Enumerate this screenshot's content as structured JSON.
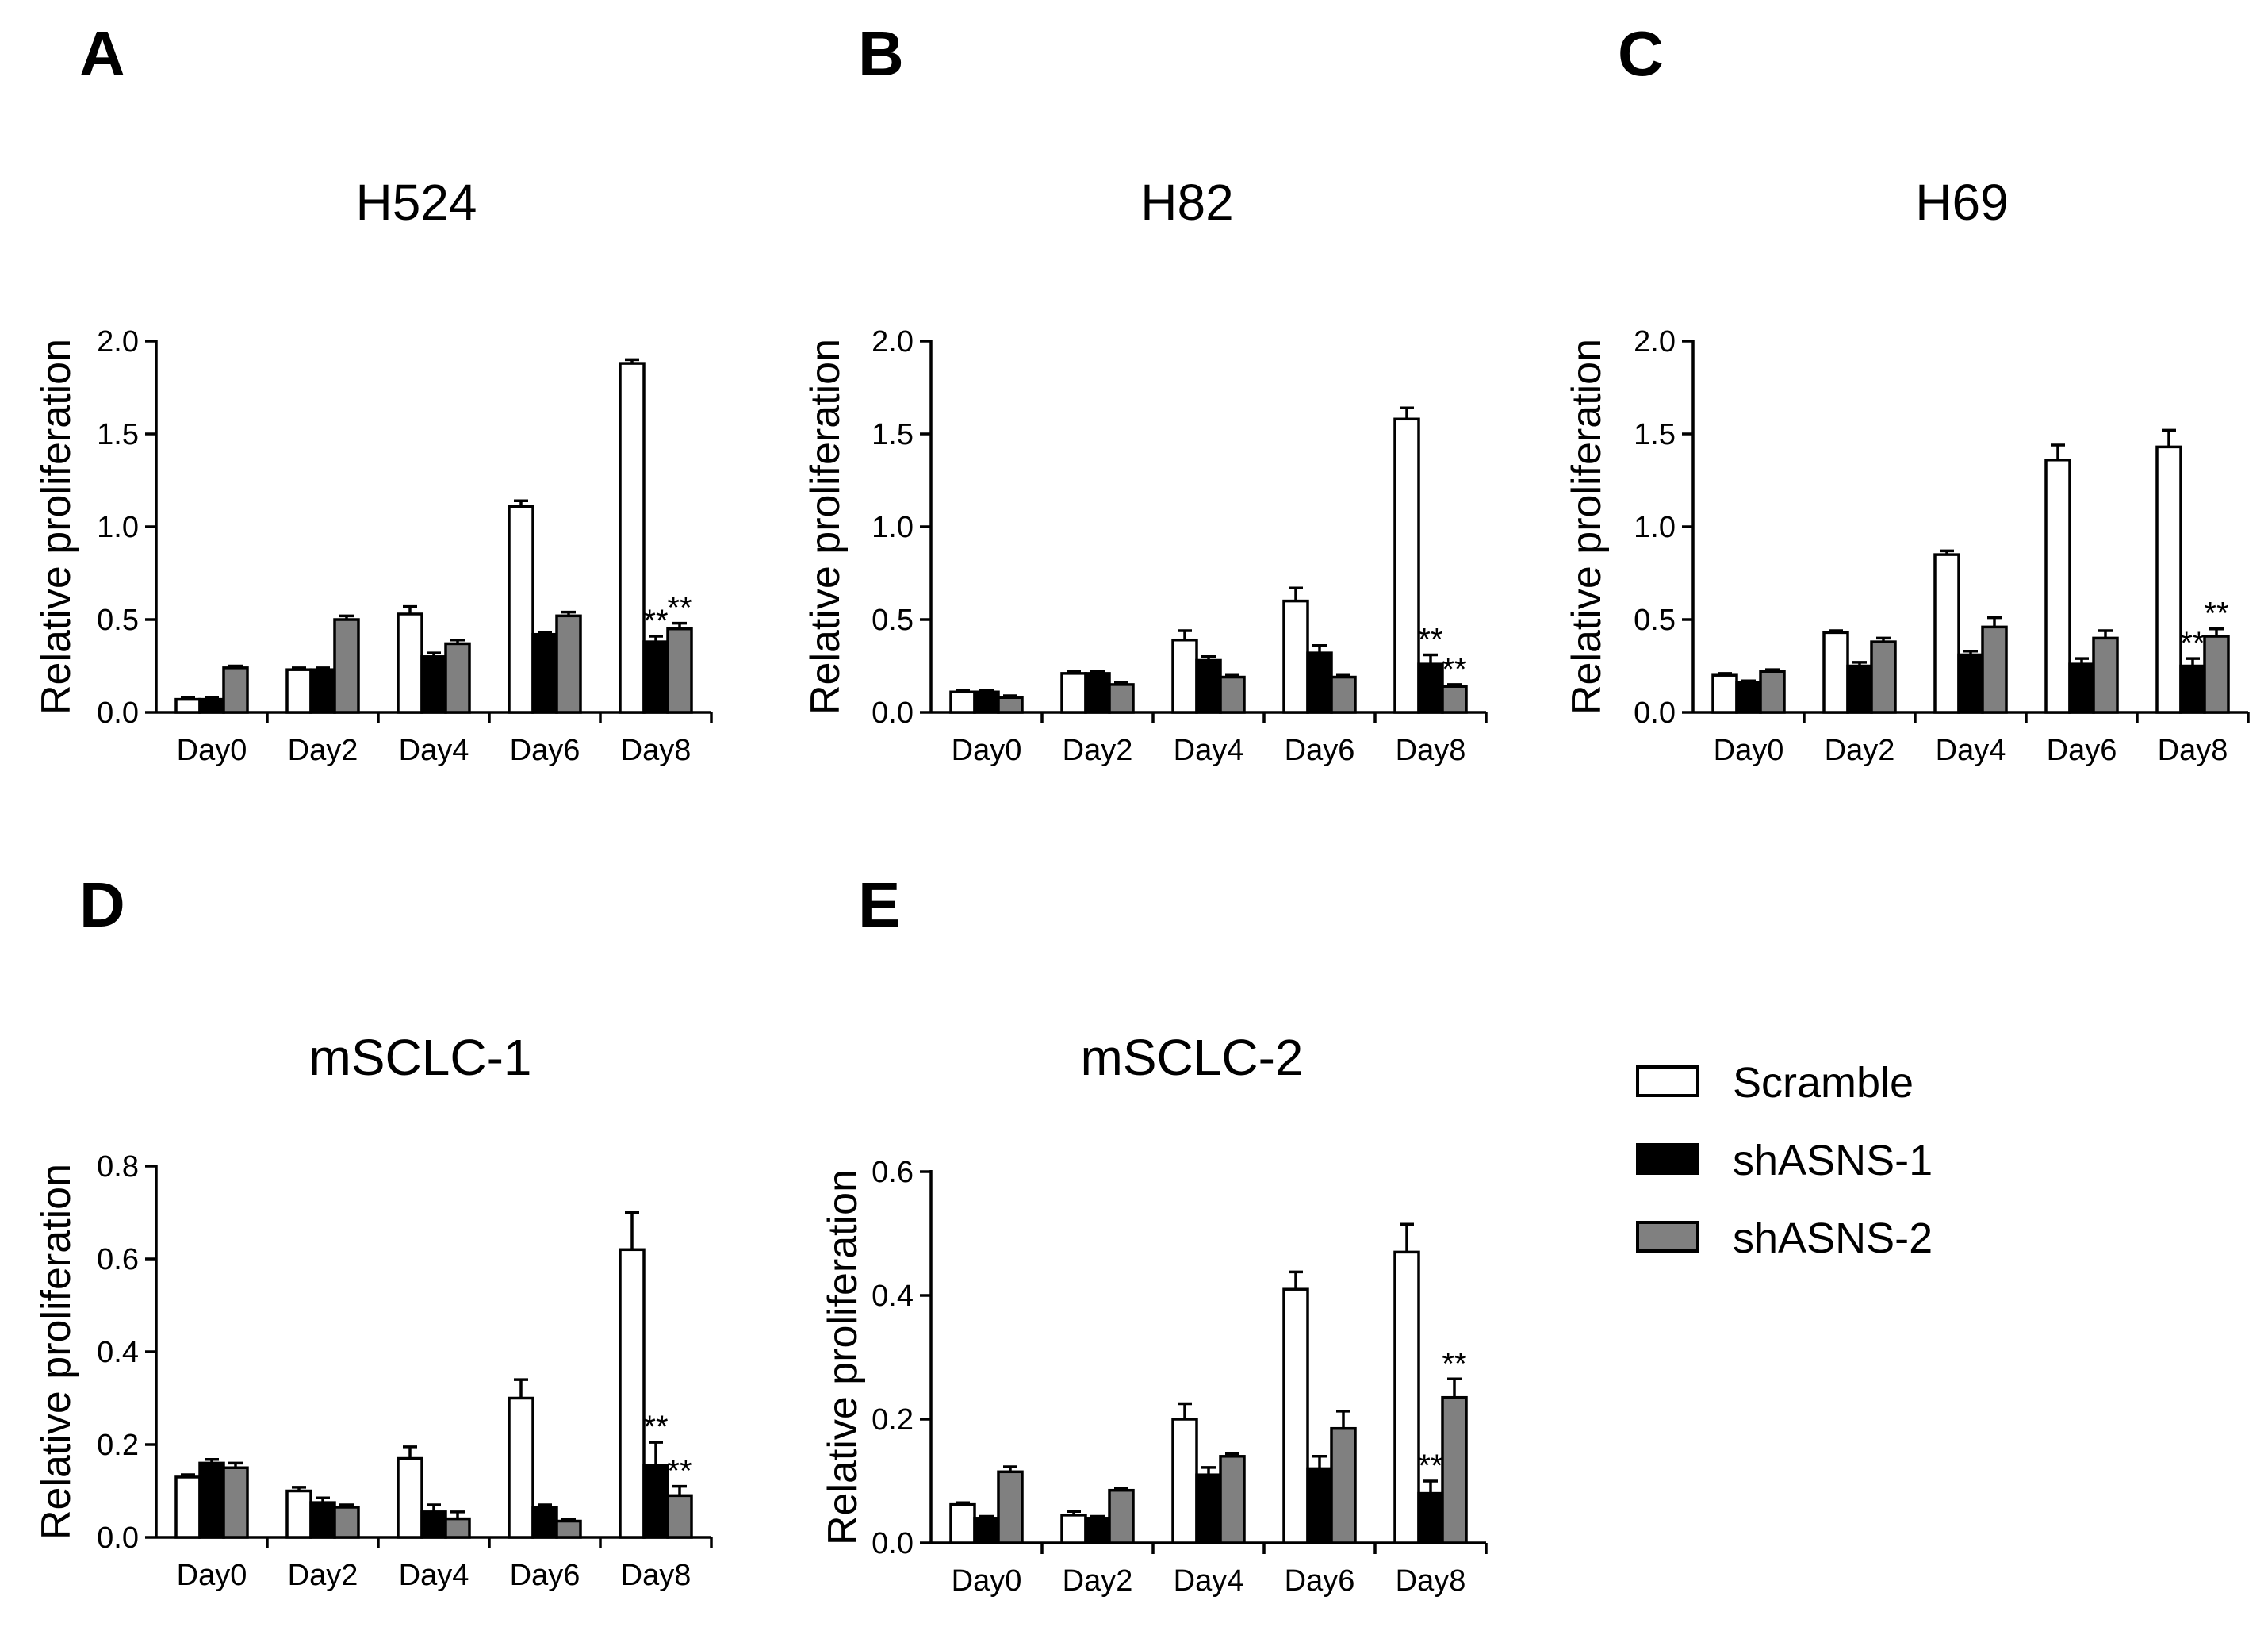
{
  "legend": [
    {
      "name": "Scramble",
      "color": "#ffffff"
    },
    {
      "name": "shASNS-1",
      "color": "#000000"
    },
    {
      "name": "shASNS-2",
      "color": "#808080"
    }
  ],
  "chart_data": [
    {
      "type": "bar",
      "panel": "A",
      "title": "H524",
      "xlabel": "",
      "ylabel": "Relative proliferation",
      "ylim": [
        0,
        2.0
      ],
      "yticks": [
        "0.0",
        "0.5",
        "1.0",
        "1.5",
        "2.0"
      ],
      "categories": [
        "Day0",
        "Day2",
        "Day4",
        "Day6",
        "Day8"
      ],
      "series": [
        {
          "name": "Scramble",
          "values": [
            0.07,
            0.23,
            0.53,
            1.11,
            1.88
          ],
          "errors": [
            0.01,
            0.01,
            0.04,
            0.03,
            0.02
          ]
        },
        {
          "name": "shASNS-1",
          "values": [
            0.07,
            0.23,
            0.3,
            0.42,
            0.38
          ],
          "errors": [
            0.01,
            0.01,
            0.02,
            0.01,
            0.03
          ]
        },
        {
          "name": "shASNS-2",
          "values": [
            0.24,
            0.5,
            0.37,
            0.52,
            0.45
          ],
          "errors": [
            0.01,
            0.02,
            0.02,
            0.02,
            0.03
          ]
        }
      ],
      "annotations": [
        {
          "category": "Day8",
          "series": "shASNS-1",
          "text": "**"
        },
        {
          "category": "Day8",
          "series": "shASNS-2",
          "text": "**"
        }
      ]
    },
    {
      "type": "bar",
      "panel": "B",
      "title": "H82",
      "xlabel": "",
      "ylabel": "Relative proliferation",
      "ylim": [
        0,
        2.0
      ],
      "yticks": [
        "0.0",
        "0.5",
        "1.0",
        "1.5",
        "2.0"
      ],
      "categories": [
        "Day0",
        "Day2",
        "Day4",
        "Day6",
        "Day8"
      ],
      "series": [
        {
          "name": "Scramble",
          "values": [
            0.11,
            0.21,
            0.39,
            0.6,
            1.58
          ],
          "errors": [
            0.01,
            0.01,
            0.05,
            0.07,
            0.06
          ]
        },
        {
          "name": "shASNS-1",
          "values": [
            0.11,
            0.21,
            0.28,
            0.32,
            0.26
          ],
          "errors": [
            0.01,
            0.01,
            0.02,
            0.04,
            0.05
          ]
        },
        {
          "name": "shASNS-2",
          "values": [
            0.08,
            0.15,
            0.19,
            0.19,
            0.14
          ],
          "errors": [
            0.01,
            0.01,
            0.01,
            0.01,
            0.01
          ]
        }
      ],
      "annotations": [
        {
          "category": "Day8",
          "series": "shASNS-1",
          "text": "**"
        },
        {
          "category": "Day8",
          "series": "shASNS-2",
          "text": "**"
        }
      ]
    },
    {
      "type": "bar",
      "panel": "C",
      "title": "H69",
      "xlabel": "",
      "ylabel": "Relative proliferation",
      "ylim": [
        0,
        2.0
      ],
      "yticks": [
        "0.0",
        "0.5",
        "1.0",
        "1.5",
        "2.0"
      ],
      "categories": [
        "Day0",
        "Day2",
        "Day4",
        "Day6",
        "Day8"
      ],
      "series": [
        {
          "name": "Scramble",
          "values": [
            0.2,
            0.43,
            0.85,
            1.36,
            1.43
          ],
          "errors": [
            0.01,
            0.01,
            0.02,
            0.08,
            0.09
          ]
        },
        {
          "name": "shASNS-1",
          "values": [
            0.16,
            0.25,
            0.31,
            0.26,
            0.25
          ],
          "errors": [
            0.01,
            0.02,
            0.02,
            0.03,
            0.04
          ]
        },
        {
          "name": "shASNS-2",
          "values": [
            0.22,
            0.38,
            0.46,
            0.4,
            0.41
          ],
          "errors": [
            0.01,
            0.02,
            0.05,
            0.04,
            0.04
          ]
        }
      ],
      "annotations": [
        {
          "category": "Day8",
          "series": "shASNS-1",
          "text": "**"
        },
        {
          "category": "Day8",
          "series": "shASNS-2",
          "text": "**"
        }
      ]
    },
    {
      "type": "bar",
      "panel": "D",
      "title": "mSCLC-1",
      "xlabel": "",
      "ylabel": "Relative proliferation",
      "ylim": [
        0,
        0.8
      ],
      "yticks": [
        "0.0",
        "0.2",
        "0.4",
        "0.6",
        "0.8"
      ],
      "categories": [
        "Day0",
        "Day2",
        "Day4",
        "Day6",
        "Day8"
      ],
      "series": [
        {
          "name": "Scramble",
          "values": [
            0.13,
            0.1,
            0.17,
            0.3,
            0.62
          ],
          "errors": [
            0.005,
            0.008,
            0.025,
            0.04,
            0.08
          ]
        },
        {
          "name": "shASNS-1",
          "values": [
            0.16,
            0.075,
            0.055,
            0.065,
            0.155
          ],
          "errors": [
            0.008,
            0.01,
            0.015,
            0.005,
            0.05
          ]
        },
        {
          "name": "shASNS-2",
          "values": [
            0.15,
            0.065,
            0.04,
            0.035,
            0.09
          ],
          "errors": [
            0.01,
            0.005,
            0.015,
            0.003,
            0.02
          ]
        }
      ],
      "annotations": [
        {
          "category": "Day8",
          "series": "shASNS-1",
          "text": "**"
        },
        {
          "category": "Day8",
          "series": "shASNS-2",
          "text": "**"
        }
      ]
    },
    {
      "type": "bar",
      "panel": "E",
      "title": "mSCLC-2",
      "xlabel": "",
      "ylabel": "Relative proliferation",
      "ylim": [
        0,
        0.6
      ],
      "yticks": [
        "0.0",
        "0.2",
        "0.4",
        "0.6"
      ],
      "categories": [
        "Day0",
        "Day2",
        "Day4",
        "Day6",
        "Day8"
      ],
      "series": [
        {
          "name": "Scramble",
          "values": [
            0.062,
            0.045,
            0.2,
            0.41,
            0.47
          ],
          "errors": [
            0.003,
            0.006,
            0.025,
            0.028,
            0.045
          ]
        },
        {
          "name": "shASNS-1",
          "values": [
            0.04,
            0.04,
            0.11,
            0.12,
            0.08
          ],
          "errors": [
            0.003,
            0.003,
            0.012,
            0.02,
            0.02
          ]
        },
        {
          "name": "shASNS-2",
          "values": [
            0.115,
            0.085,
            0.14,
            0.185,
            0.235
          ],
          "errors": [
            0.008,
            0.003,
            0.004,
            0.028,
            0.03
          ]
        }
      ],
      "annotations": [
        {
          "category": "Day8",
          "series": "shASNS-1",
          "text": "**"
        },
        {
          "category": "Day8",
          "series": "shASNS-2",
          "text": "**"
        }
      ]
    }
  ]
}
